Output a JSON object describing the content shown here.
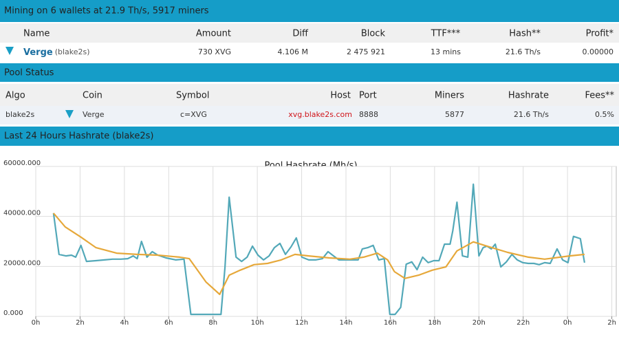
{
  "mining": {
    "title": "Mining on 6 wallets at 21.9 Th/s, 5917 miners",
    "columns": [
      "Name",
      "Amount",
      "Diff",
      "Block",
      "TTF***",
      "Hash**",
      "Profit*"
    ],
    "rows": [
      [
        "Verge",
        "(blake2s)",
        "730 XVG",
        "4.106 M",
        "2 475 921",
        "13 mins",
        "21.6 Th/s",
        "0.00000"
      ]
    ]
  },
  "pool_status": {
    "title": "Pool Status",
    "columns": [
      "Algo",
      "Coin",
      "Symbol",
      "Host",
      "Port",
      "Miners",
      "Hashrate",
      "Fees**"
    ],
    "rows": [
      [
        "blake2s",
        "Verge",
        "c=XVG",
        "xvg.blake2s.com",
        "8888",
        "5877",
        "21.6 Th/s",
        "0.5%"
      ]
    ]
  },
  "hashrate_section": {
    "title": "Last 24 Hours Hashrate (blake2s)"
  },
  "chart_data": {
    "type": "line",
    "title": "Pool Hashrate (Mh/s)",
    "xlim": [
      0,
      26.2
    ],
    "xticks": [
      {
        "value": 0,
        "label": "0h"
      },
      {
        "value": 2,
        "label": "2h"
      },
      {
        "value": 4,
        "label": "4h"
      },
      {
        "value": 6,
        "label": "6h"
      },
      {
        "value": 8,
        "label": "8h"
      },
      {
        "value": 10,
        "label": "10h"
      },
      {
        "value": 12,
        "label": "12h"
      },
      {
        "value": 14,
        "label": "14h"
      },
      {
        "value": 16,
        "label": "16h"
      },
      {
        "value": 18,
        "label": "18h"
      },
      {
        "value": 20,
        "label": "20h"
      },
      {
        "value": 22,
        "label": "22h"
      },
      {
        "value": 24,
        "label": "0h"
      },
      {
        "value": 26,
        "label": "2h"
      }
    ],
    "ylim": [
      0,
      60000
    ],
    "yticks": [
      {
        "value": 0,
        "label": "0.000"
      },
      {
        "value": 20000,
        "label": "20000.000"
      },
      {
        "value": 40000,
        "label": "40000.000"
      },
      {
        "value": 60000,
        "label": "60000.000"
      }
    ],
    "grid": true,
    "series": [
      {
        "color": "#52a8b8",
        "x": [
          0.8,
          1.05,
          1.36,
          1.61,
          1.8,
          2.04,
          2.29,
          2.72,
          3.1,
          3.47,
          3.84,
          4.15,
          4.4,
          4.58,
          4.77,
          5.02,
          5.26,
          5.51,
          5.88,
          6.32,
          6.69,
          7.0,
          7.37,
          7.68,
          8.05,
          8.36,
          8.54,
          8.73,
          9.04,
          9.29,
          9.54,
          9.78,
          10.03,
          10.28,
          10.53,
          10.77,
          11.02,
          11.27,
          11.52,
          11.76,
          12.01,
          12.32,
          12.63,
          12.94,
          13.19,
          13.44,
          13.68,
          13.99,
          14.3,
          14.55,
          14.74,
          14.98,
          15.23,
          15.48,
          15.73,
          15.98,
          16.22,
          16.47,
          16.72,
          16.97,
          17.21,
          17.46,
          17.71,
          17.96,
          18.2,
          18.45,
          18.7,
          18.82,
          19.01,
          19.26,
          19.5,
          19.75,
          20.0,
          20.19,
          20.37,
          20.56,
          20.74,
          20.99,
          21.24,
          21.49,
          21.73,
          21.98,
          22.23,
          22.48,
          22.72,
          22.97,
          23.22,
          23.53,
          23.78,
          24.02,
          24.27,
          24.58,
          24.77
        ],
        "values": [
          41300,
          24800,
          24200,
          24500,
          23700,
          28400,
          22000,
          22300,
          22600,
          22900,
          22900,
          23100,
          24200,
          23100,
          30000,
          23700,
          25900,
          24500,
          23400,
          22600,
          22900,
          800,
          800,
          800,
          800,
          800,
          19600,
          47700,
          23700,
          22000,
          23700,
          28100,
          24500,
          22600,
          24200,
          27500,
          29200,
          24800,
          27800,
          31400,
          23700,
          22600,
          22600,
          23100,
          25900,
          24200,
          22600,
          22600,
          22600,
          22600,
          27000,
          27500,
          28400,
          22600,
          23100,
          800,
          800,
          3600,
          20900,
          21800,
          18700,
          23700,
          21500,
          22300,
          22300,
          28900,
          28900,
          34200,
          45700,
          24200,
          23700,
          52900,
          24200,
          27500,
          28100,
          27000,
          28900,
          19800,
          21800,
          24800,
          22600,
          21500,
          21200,
          21200,
          20700,
          21500,
          21200,
          27000,
          22600,
          21500,
          32000,
          31100,
          21500
        ]
      },
      {
        "color": "#e6a83a",
        "x": [
          0.8,
          1.33,
          2.04,
          2.72,
          3.65,
          4.58,
          5.51,
          6.5,
          6.93,
          7.68,
          8.3,
          8.73,
          9.23,
          9.85,
          10.46,
          11.08,
          11.7,
          12.32,
          13.25,
          14.18,
          14.8,
          15.42,
          15.88,
          16.19,
          16.66,
          17.28,
          17.9,
          18.51,
          19.01,
          19.75,
          20.37,
          21.3,
          22.23,
          22.97,
          24.09,
          24.77
        ],
        "values": [
          41300,
          35800,
          31700,
          27500,
          25300,
          24800,
          24500,
          23700,
          23100,
          13800,
          8800,
          16500,
          18500,
          20700,
          21200,
          22600,
          24800,
          24200,
          23400,
          22900,
          23700,
          25300,
          22600,
          17900,
          15200,
          16500,
          18500,
          19800,
          26200,
          29800,
          28100,
          25600,
          23700,
          22900,
          24200,
          24800
        ]
      }
    ]
  }
}
